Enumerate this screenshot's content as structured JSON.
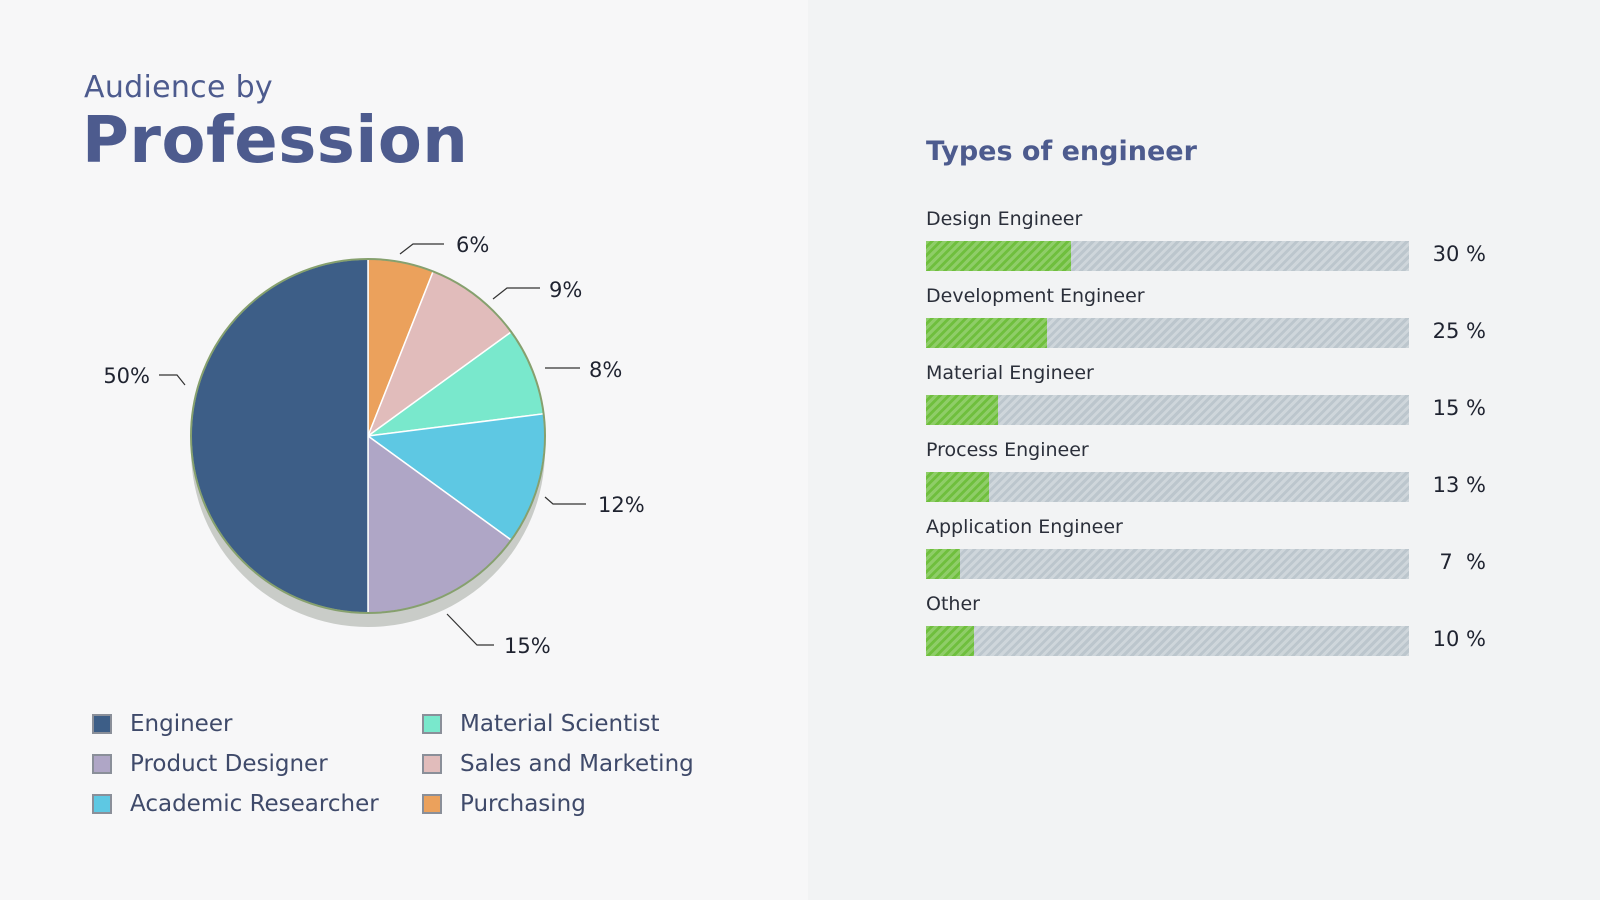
{
  "left": {
    "subtitle": "Audience by",
    "title": "Profession"
  },
  "chart_data": [
    {
      "type": "pie",
      "title": "",
      "start_angle_deg": 0,
      "direction": "clockwise",
      "slices": [
        {
          "label": "Purchasing",
          "value": 6,
          "display": "6%",
          "color": "#eba15c"
        },
        {
          "label": "Sales and Marketing",
          "value": 9,
          "display": "9%",
          "color": "#e1bcbb"
        },
        {
          "label": "Material Scientist",
          "value": 8,
          "display": "8%",
          "color": "#79e8cc"
        },
        {
          "label": "Academic Researcher",
          "value": 12,
          "display": "12%",
          "color": "#5ec8e3"
        },
        {
          "label": "Product Designer",
          "value": 15,
          "display": "15%",
          "color": "#afa6c6"
        },
        {
          "label": "Engineer",
          "value": 50,
          "display": "50%",
          "color": "#3d5e87"
        }
      ],
      "legend": [
        {
          "label": "Engineer",
          "color": "#3d5e87"
        },
        {
          "label": "Product Designer",
          "color": "#afa6c6"
        },
        {
          "label": "Academic Researcher",
          "color": "#5ec8e3"
        },
        {
          "label": "Material Scientist",
          "color": "#79e8cc"
        },
        {
          "label": "Sales and Marketing",
          "color": "#e1bcbb"
        },
        {
          "label": "Purchasing",
          "color": "#eba15c"
        }
      ],
      "legend_position": "bottom"
    },
    {
      "type": "bar",
      "orientation": "horizontal",
      "title": "Types of engineer",
      "xlim": [
        0,
        100
      ],
      "categories": [
        "Design Engineer",
        "Development Engineer",
        "Material Engineer",
        "Process Engineer",
        "Application Engineer",
        "Other"
      ],
      "values": [
        30,
        25,
        15,
        13,
        7,
        10
      ],
      "value_labels": [
        "30 %",
        "25 %",
        "15 %",
        "13 %",
        "7  %",
        "10 %"
      ],
      "fill_color": "#6fbf3d",
      "track_color": "#bcc6cd"
    }
  ]
}
